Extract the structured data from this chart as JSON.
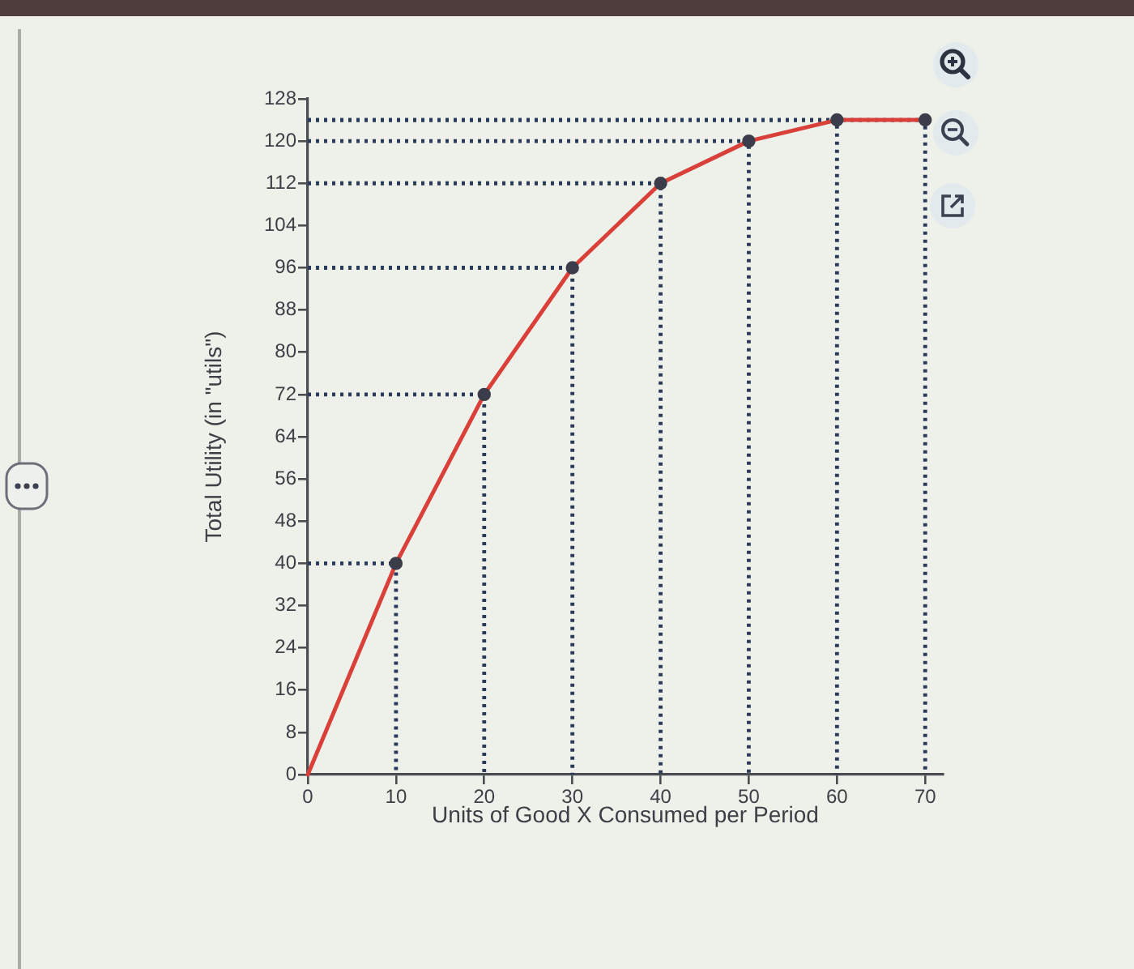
{
  "chart_data": {
    "type": "line",
    "xlabel": "Units of Good X Consumed per Period",
    "ylabel": "Total Utility (in \"utils\")",
    "x": [
      0,
      10,
      20,
      30,
      40,
      50,
      60,
      70
    ],
    "series": [
      {
        "color": "#2c3a5a",
        "line_style": "dotted",
        "marker": "none",
        "x": [
          0,
          10,
          10
        ],
        "values": [
          40,
          40,
          0
        ]
      },
      {
        "color": "#2c3a5a",
        "line_style": "dotted",
        "marker": "none",
        "x": [
          0,
          20,
          20
        ],
        "values": [
          72,
          72,
          0
        ]
      },
      {
        "color": "#2c3a5a",
        "line_style": "dotted",
        "marker": "none",
        "x": [
          0,
          30,
          30
        ],
        "values": [
          96,
          96,
          0
        ]
      },
      {
        "color": "#2c3a5a",
        "line_style": "dotted",
        "marker": "none",
        "x": [
          0,
          40,
          40
        ],
        "values": [
          112,
          112,
          0
        ]
      },
      {
        "color": "#2c3a5a",
        "line_style": "dotted",
        "marker": "none",
        "x": [
          0,
          50,
          50
        ],
        "values": [
          120,
          120,
          0
        ]
      },
      {
        "color": "#2c3a5a",
        "line_style": "dotted",
        "marker": "none",
        "x": [
          0,
          60,
          60
        ],
        "values": [
          124,
          124,
          0
        ]
      },
      {
        "color": "#2c3a5a",
        "line_style": "dotted",
        "marker": "none",
        "x": [
          0,
          70,
          70
        ],
        "values": [
          124,
          124,
          0
        ]
      },
      {
        "color": "#d9403a",
        "marker": "none",
        "line_style": "solid",
        "values": [
          0,
          40,
          72,
          96,
          112,
          120,
          124,
          124
        ]
      },
      {
        "type": "scatter",
        "color": "#3b3e4a",
        "marker": "circle",
        "values": [
          null,
          40,
          72,
          96,
          112,
          120,
          124,
          124
        ]
      }
    ],
    "xlim": [
      0,
      72
    ],
    "xticks": [
      0,
      10,
      20,
      30,
      40,
      50,
      60,
      70
    ],
    "ylim": [
      0,
      128
    ],
    "yticks": [
      0,
      8,
      16,
      24,
      32,
      40,
      48,
      56,
      64,
      72,
      80,
      88,
      96,
      104,
      112,
      120,
      128
    ]
  }
}
